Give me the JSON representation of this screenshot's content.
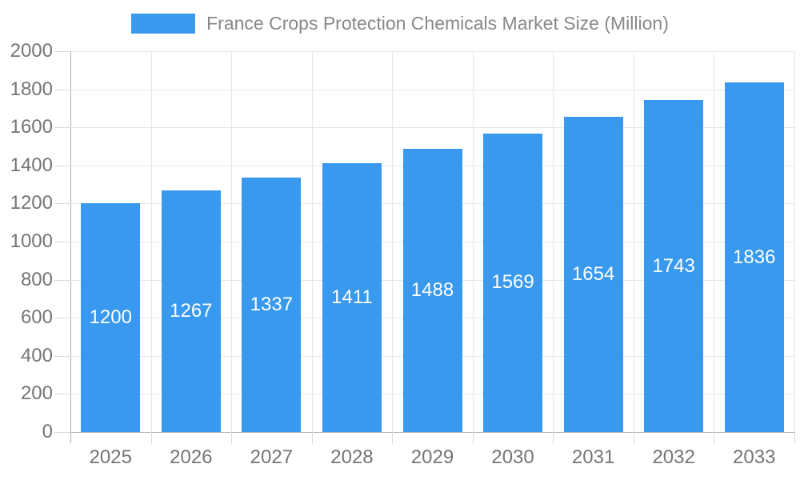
{
  "chart_data": {
    "type": "bar",
    "title": "France Crops Protection Chemicals Market Size (Million)",
    "categories": [
      "2025",
      "2026",
      "2027",
      "2028",
      "2029",
      "2030",
      "2031",
      "2032",
      "2033"
    ],
    "values": [
      1200,
      1267,
      1337,
      1411,
      1488,
      1569,
      1654,
      1743,
      1836
    ],
    "xlabel": "",
    "ylabel": "",
    "ylim": [
      0,
      2000
    ],
    "ytick_step": 200,
    "grid": true,
    "legend_position": "top",
    "value_labels": "inside-center",
    "colors": {
      "bar": "#3899ee",
      "bar_label": "#ffffff",
      "grid": "#e6e6e6",
      "axis": "#b0b0b0",
      "tick": "#d9d9d9",
      "axis_label": "#757575",
      "legend_text": "#888888",
      "background": "#ffffff"
    }
  }
}
